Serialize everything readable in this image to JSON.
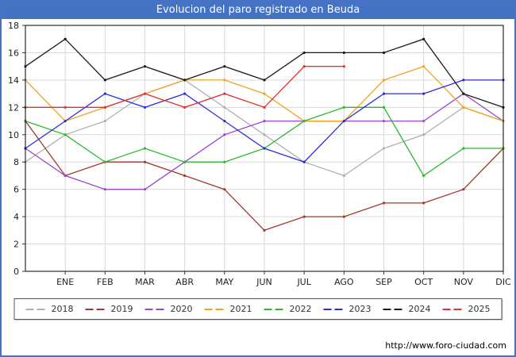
{
  "title": "Evolucion del paro registrado en Beuda",
  "footer": {
    "url": "http://www.foro-ciudad.com"
  },
  "colors": {
    "title_bar": "#4472c4",
    "frame_border": "#4a72c4",
    "grid": "#d9d9d9",
    "plot_border": "#000000",
    "axis_text": "#222222"
  },
  "chart_data": {
    "type": "line",
    "title": "Evolucion del paro registrado en Beuda",
    "xlabel": "",
    "ylabel": "",
    "ylim": [
      0,
      18
    ],
    "ytick_step": 2,
    "grid": true,
    "legend_position": "bottom",
    "categories": [
      "",
      "ENE",
      "FEB",
      "MAR",
      "ABR",
      "MAY",
      "JUN",
      "JUL",
      "AGO",
      "SEP",
      "OCT",
      "NOV",
      "DIC"
    ],
    "series": [
      {
        "name": "2018",
        "color": "#b0b0b0",
        "values": [
          8,
          10,
          11,
          13,
          14,
          12,
          10,
          8,
          7,
          9,
          10,
          12,
          11
        ]
      },
      {
        "name": "2019",
        "color": "#a0392e",
        "values": [
          11,
          7,
          8,
          8,
          7,
          6,
          3,
          4,
          4,
          5,
          5,
          6,
          9
        ]
      },
      {
        "name": "2020",
        "color": "#9b45d0",
        "values": [
          9,
          7,
          6,
          6,
          8,
          10,
          11,
          11,
          11,
          11,
          11,
          13,
          11
        ]
      },
      {
        "name": "2021",
        "color": "#efa322",
        "values": [
          14,
          11,
          12,
          13,
          14,
          14,
          13,
          11,
          11,
          14,
          15,
          12,
          11
        ]
      },
      {
        "name": "2022",
        "color": "#2eb82e",
        "values": [
          11,
          10,
          8,
          9,
          8,
          8,
          9,
          11,
          12,
          12,
          7,
          9,
          9
        ]
      },
      {
        "name": "2023",
        "color": "#2d2dd6",
        "values": [
          9,
          11,
          13,
          12,
          13,
          11,
          9,
          8,
          11,
          13,
          13,
          14,
          14
        ]
      },
      {
        "name": "2024",
        "color": "#1a1a1a",
        "values": [
          15,
          17,
          14,
          15,
          14,
          15,
          14,
          16,
          16,
          16,
          17,
          13,
          12
        ]
      },
      {
        "name": "2025",
        "color": "#e03030",
        "values": [
          12,
          12,
          12,
          13,
          12,
          13,
          12,
          15,
          15,
          null,
          null,
          null,
          null
        ]
      }
    ]
  }
}
